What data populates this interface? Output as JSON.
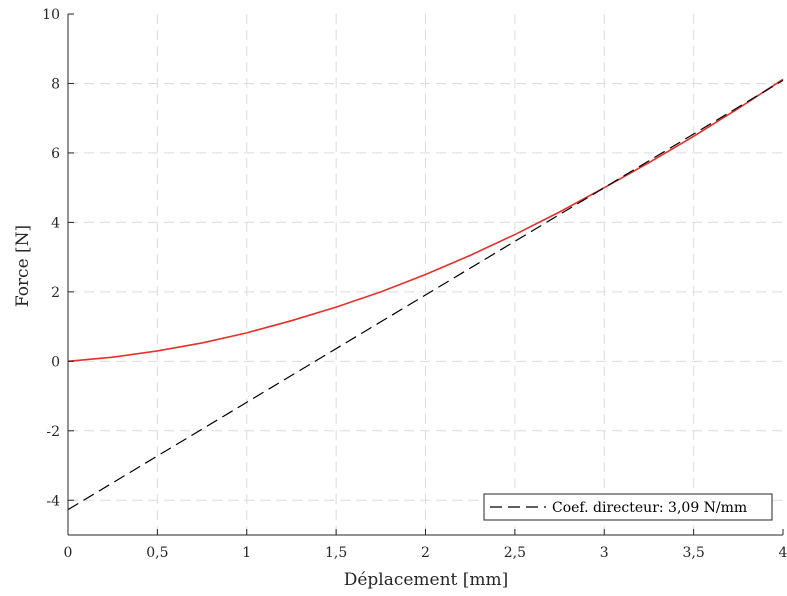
{
  "chart_data": {
    "type": "line",
    "xlabel": "Déplacement [mm]",
    "ylabel": "Force [N]",
    "xlim": [
      0,
      4
    ],
    "ylim": [
      -5,
      10
    ],
    "xticks": [
      0,
      0.5,
      1,
      1.5,
      2,
      2.5,
      3,
      3.5,
      4
    ],
    "xtick_labels": [
      "0",
      "0,5",
      "1",
      "1,5",
      "2",
      "2,5",
      "3",
      "3,5",
      "4"
    ],
    "yticks": [
      -4,
      -2,
      0,
      2,
      4,
      6,
      8,
      10
    ],
    "ytick_labels": [
      "-4",
      "-2",
      "0",
      "2",
      "4",
      "6",
      "8",
      "10"
    ],
    "grid": true,
    "legend_position": "bottom-right",
    "series": [
      {
        "color": "#e8302a",
        "style": "solid",
        "x": [
          0,
          0.25,
          0.5,
          0.75,
          1,
          1.25,
          1.5,
          1.75,
          2,
          2.25,
          2.5,
          2.75,
          3,
          3.25,
          3.5,
          3.75,
          4
        ],
        "y": [
          0,
          0.12,
          0.3,
          0.53,
          0.82,
          1.17,
          1.56,
          2.0,
          2.5,
          3.05,
          3.65,
          4.3,
          5.0,
          5.72,
          6.48,
          7.28,
          8.12
        ]
      },
      {
        "name": "Coef. directeur: 3,09 N/mm",
        "color": "#000000",
        "style": "dashed",
        "x": [
          0,
          4
        ],
        "y": [
          -4.27,
          8.09
        ]
      }
    ]
  }
}
